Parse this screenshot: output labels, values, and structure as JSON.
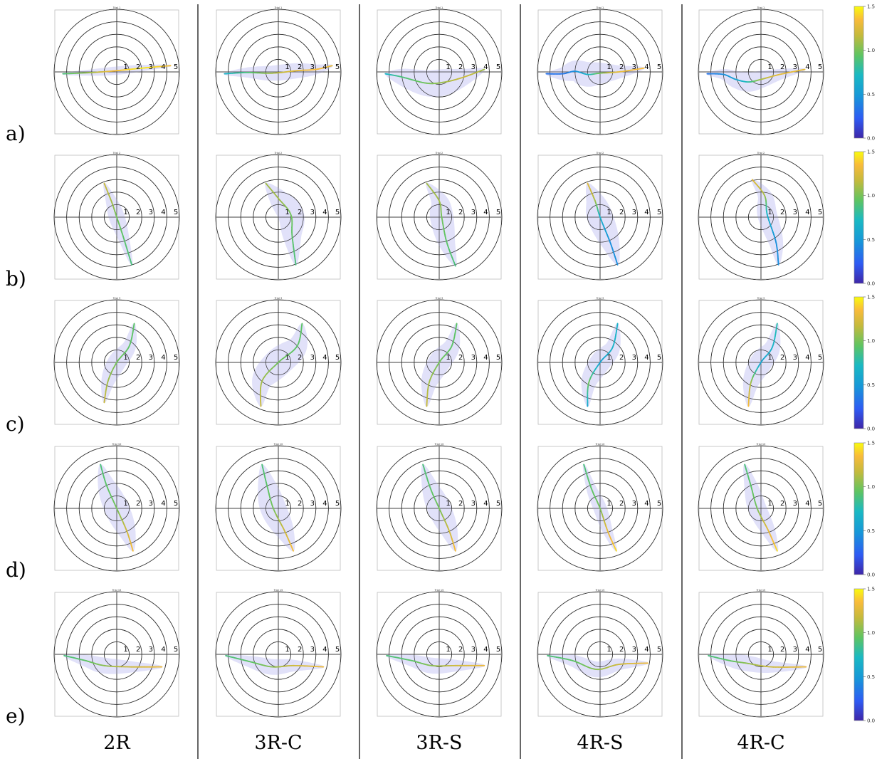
{
  "chart_data": {
    "type": "polar-trajectory-grid",
    "row_labels": [
      "a)",
      "b)",
      "c)",
      "d)",
      "e)"
    ],
    "column_labels": [
      "2R",
      "3R-C",
      "3R-S",
      "4R-S",
      "4R-C"
    ],
    "trial_titles": [
      "Trial 1",
      "Trial 2",
      "Trial 3",
      "Trial 10",
      "Trial 15"
    ],
    "radial_ticks": [
      "1",
      "2",
      "3",
      "4",
      "5"
    ],
    "r_max": 5,
    "colorbar": {
      "min": 0.0,
      "max": 1.5,
      "ticks": [
        "0.0",
        "0.5",
        "1.0",
        "1.5"
      ],
      "colormap": [
        "#3e26a8",
        "#2e5bf3",
        "#1797d8",
        "#1ab9c3",
        "#5ec462",
        "#c4ba3c",
        "#f9bb3a",
        "#f9fb0e"
      ]
    },
    "envelope_color": "#dcdcf8",
    "trajectories": [
      [
        {
          "pts": [
            [
              -4.3,
              -0.15
            ],
            [
              -2,
              -0.05
            ],
            [
              0,
              0.1
            ],
            [
              2,
              0.3
            ],
            [
              4.3,
              0.5
            ]
          ],
          "speed": [
            0.8,
            1.0,
            1.3,
            1.45,
            1.3
          ],
          "env_w": 0.25
        },
        {
          "pts": [
            [
              -4.3,
              -0.15
            ],
            [
              -2.5,
              -0.05
            ],
            [
              -0.5,
              -0.1
            ],
            [
              1.5,
              0.1
            ],
            [
              3,
              0.2
            ],
            [
              4.3,
              0.5
            ]
          ],
          "speed": [
            0.6,
            0.8,
            1.0,
            1.2,
            1.3,
            1.2
          ],
          "env_w": 0.55
        },
        {
          "pts": [
            [
              -4.3,
              -0.15
            ],
            [
              -3,
              -0.4
            ],
            [
              -1,
              -0.9
            ],
            [
              0.5,
              -0.8
            ],
            [
              2,
              -0.4
            ],
            [
              3.6,
              0.2
            ]
          ],
          "speed": [
            0.6,
            0.8,
            0.9,
            1.0,
            1.1,
            1.0
          ],
          "env_w": 1.0
        },
        {
          "pts": [
            [
              -4.3,
              -0.15
            ],
            [
              -3,
              -0.15
            ],
            [
              -2,
              0.05
            ],
            [
              -1,
              -0.2
            ],
            [
              0,
              -0.1
            ],
            [
              1.5,
              0
            ],
            [
              3.5,
              0.3
            ]
          ],
          "speed": [
            0.3,
            0.3,
            0.4,
            0.6,
            0.9,
            1.2,
            1.3
          ],
          "env_w": 0.9
        },
        {
          "pts": [
            [
              -4.3,
              -0.15
            ],
            [
              -3,
              -0.2
            ],
            [
              -2,
              -0.6
            ],
            [
              -1,
              -0.8
            ],
            [
              0,
              -0.6
            ],
            [
              1.5,
              -0.2
            ],
            [
              3.5,
              0.2
            ]
          ],
          "speed": [
            0.3,
            0.4,
            0.5,
            0.7,
            1.0,
            1.2,
            1.2
          ],
          "env_w": 0.7
        }
      ],
      [
        {
          "pts": [
            [
              -1.0,
              2.7
            ],
            [
              -0.4,
              1.2
            ],
            [
              0,
              0
            ],
            [
              0.5,
              -1.5
            ],
            [
              1.2,
              -3.8
            ]
          ],
          "speed": [
            1.1,
            1.0,
            0.9,
            0.85,
            0.8
          ],
          "env_w": 0.55
        },
        {
          "pts": [
            [
              -1.0,
              2.7
            ],
            [
              0,
              1.5
            ],
            [
              1,
              0.2
            ],
            [
              1.1,
              -1.5
            ],
            [
              1.4,
              -3.8
            ]
          ],
          "speed": [
            1.0,
            1.0,
            0.9,
            0.85,
            0.8
          ],
          "env_w": 0.95
        },
        {
          "pts": [
            [
              -1.0,
              2.7
            ],
            [
              0,
              1.3
            ],
            [
              0.2,
              0
            ],
            [
              0.6,
              -2
            ],
            [
              1.3,
              -3.9
            ]
          ],
          "speed": [
            1.0,
            1.0,
            0.9,
            0.85,
            0.8
          ],
          "env_w": 0.85
        },
        {
          "pts": [
            [
              -1.0,
              2.7
            ],
            [
              -0.4,
              1.3
            ],
            [
              0,
              0
            ],
            [
              0.8,
              -2
            ],
            [
              1.4,
              -3.8
            ]
          ],
          "speed": [
            1.2,
            1.0,
            0.6,
            0.4,
            0.4
          ],
          "env_w": 0.95
        },
        {
          "pts": [
            [
              -0.7,
              3.0
            ],
            [
              0.3,
              1.7
            ],
            [
              0.5,
              0.2
            ],
            [
              1.2,
              -2
            ],
            [
              1.4,
              -3.8
            ]
          ],
          "speed": [
            1.2,
            1.0,
            0.6,
            0.4,
            0.4
          ],
          "env_w": 0.7
        }
      ],
      [
        {
          "pts": [
            [
              -1.0,
              -3.2
            ],
            [
              -0.7,
              -1.5
            ],
            [
              0,
              0
            ],
            [
              1.0,
              1.3
            ],
            [
              1.4,
              3.1
            ]
          ],
          "speed": [
            1.1,
            1.0,
            0.9,
            0.85,
            0.85
          ],
          "env_w": 0.65
        },
        {
          "pts": [
            [
              -1.4,
              -3.5
            ],
            [
              -1.3,
              -1.5
            ],
            [
              0,
              0
            ],
            [
              1.5,
              1.3
            ],
            [
              1.9,
              3.1
            ]
          ],
          "speed": [
            1.1,
            1.0,
            0.9,
            0.85,
            0.85
          ],
          "env_w": 1.05
        },
        {
          "pts": [
            [
              -1.0,
              -3.5
            ],
            [
              -0.8,
              -1.6
            ],
            [
              0,
              0
            ],
            [
              1.0,
              1.3
            ],
            [
              1.4,
              3.1
            ]
          ],
          "speed": [
            1.1,
            1.0,
            0.9,
            0.85,
            0.85
          ],
          "env_w": 0.8
        },
        {
          "pts": [
            [
              -1.0,
              -3.5
            ],
            [
              -0.9,
              -1.6
            ],
            [
              0,
              0
            ],
            [
              1.0,
              1.2
            ],
            [
              1.4,
              3.1
            ]
          ],
          "speed": [
            0.5,
            0.9,
            0.5,
            0.6,
            0.6
          ],
          "env_w": 0.75
        },
        {
          "pts": [
            [
              -1.0,
              -3.5
            ],
            [
              -0.8,
              -1.6
            ],
            [
              0,
              0
            ],
            [
              0.9,
              1.2
            ],
            [
              1.3,
              3.1
            ]
          ],
          "speed": [
            1.3,
            1.0,
            0.5,
            0.6,
            0.7
          ],
          "env_w": 0.8
        }
      ],
      [
        {
          "pts": [
            [
              -1.3,
              3.5
            ],
            [
              -0.8,
              1.8
            ],
            [
              0,
              0
            ],
            [
              0.8,
              -1.8
            ],
            [
              1.3,
              -3.4
            ]
          ],
          "speed": [
            0.8,
            0.85,
            0.9,
            1.1,
            1.3
          ],
          "env_w": 0.9
        },
        {
          "pts": [
            [
              -1.3,
              3.5
            ],
            [
              -0.9,
              1.8
            ],
            [
              -0.4,
              0
            ],
            [
              0.5,
              -1.8
            ],
            [
              1.2,
              -3.4
            ]
          ],
          "speed": [
            0.8,
            0.85,
            0.9,
            1.1,
            1.3
          ],
          "env_w": 0.95
        },
        {
          "pts": [
            [
              -1.3,
              3.5
            ],
            [
              -0.7,
              1.6
            ],
            [
              0,
              0
            ],
            [
              0.8,
              -1.8
            ],
            [
              1.3,
              -3.4
            ]
          ],
          "speed": [
            0.8,
            0.85,
            0.9,
            1.1,
            1.3
          ],
          "env_w": 0.85
        },
        {
          "pts": [
            [
              -1.3,
              3.5
            ],
            [
              -0.7,
              1.6
            ],
            [
              0,
              0
            ],
            [
              0.6,
              -1.8
            ],
            [
              1.3,
              -3.4
            ]
          ],
          "speed": [
            0.8,
            0.85,
            0.9,
            1.2,
            1.4
          ],
          "env_w": 0.45
        },
        {
          "pts": [
            [
              -1.3,
              3.5
            ],
            [
              -0.8,
              1.8
            ],
            [
              -0.3,
              0
            ],
            [
              0.6,
              -1.8
            ],
            [
              1.3,
              -3.4
            ]
          ],
          "speed": [
            0.8,
            0.85,
            0.9,
            1.2,
            1.4
          ],
          "env_w": 0.65
        }
      ],
      [
        {
          "pts": [
            [
              -4.2,
              -0.1
            ],
            [
              -2.5,
              -0.5
            ],
            [
              -1,
              -0.9
            ],
            [
              1,
              -1.0
            ],
            [
              3.6,
              -1.0
            ]
          ],
          "speed": [
            0.8,
            0.85,
            0.95,
            1.1,
            1.25
          ],
          "env_w": 0.55
        },
        {
          "pts": [
            [
              -4.2,
              -0.1
            ],
            [
              -2.2,
              -0.6
            ],
            [
              -0.5,
              -1.0
            ],
            [
              1.2,
              -0.9
            ],
            [
              3.6,
              -1.0
            ]
          ],
          "speed": [
            0.8,
            0.85,
            0.95,
            1.1,
            1.25
          ],
          "env_w": 0.55
        },
        {
          "pts": [
            [
              -4.2,
              -0.1
            ],
            [
              -2.2,
              -0.5
            ],
            [
              -0.6,
              -0.9
            ],
            [
              1.3,
              -0.9
            ],
            [
              3.6,
              -0.9
            ]
          ],
          "speed": [
            0.8,
            0.85,
            0.95,
            1.1,
            1.25
          ],
          "env_w": 0.55
        },
        {
          "pts": [
            [
              -4.2,
              -0.1
            ],
            [
              -2.2,
              -0.5
            ],
            [
              -0.3,
              -1.2
            ],
            [
              1.5,
              -0.8
            ],
            [
              3.8,
              -0.7
            ]
          ],
          "speed": [
            0.8,
            0.85,
            0.95,
            1.1,
            1.25
          ],
          "env_w": 0.55
        },
        {
          "pts": [
            [
              -4.2,
              -0.1
            ],
            [
              -2.5,
              -0.5
            ],
            [
              -1.2,
              -0.7
            ],
            [
              0.8,
              -1.0
            ],
            [
              3.6,
              -1.0
            ]
          ],
          "speed": [
            0.8,
            0.85,
            0.95,
            1.1,
            1.25
          ],
          "env_w": 0.55
        }
      ]
    ]
  }
}
